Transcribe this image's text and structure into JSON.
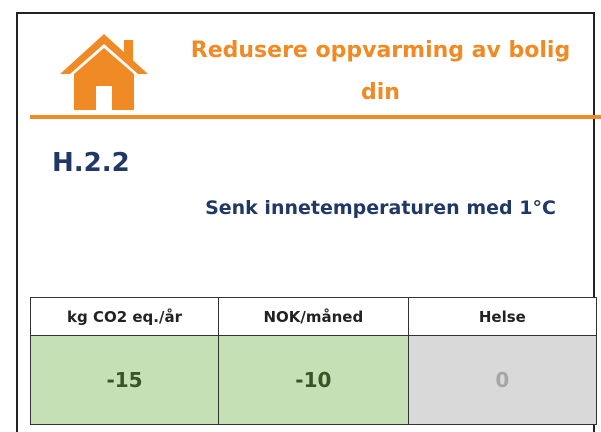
{
  "header": {
    "title_line1": "Redusere oppvarming av bolig",
    "title_line2": "din"
  },
  "measure": {
    "code": "H.2.2",
    "description": "Senk innetemperaturen med 1°C"
  },
  "table": {
    "headers": [
      "kg CO2 eq./år",
      "NOK/måned",
      "Helse"
    ],
    "values": [
      -15,
      -10,
      0
    ]
  }
}
